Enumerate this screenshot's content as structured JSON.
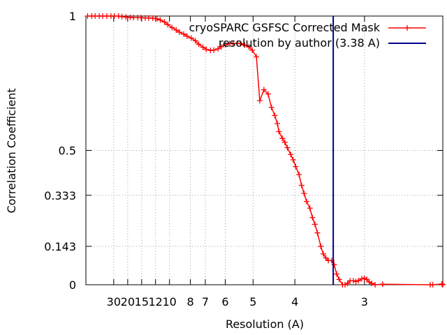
{
  "chart_data": {
    "type": "line",
    "xlabel": "Resolution (A)",
    "ylabel": "Correlation Coefficient",
    "x_unit": "inverse resolution (1/A)",
    "xlim": [
      0,
      0.427
    ],
    "ylim": [
      0,
      1
    ],
    "x_ticks": [
      {
        "label": "30",
        "value": 0.0333
      },
      {
        "label": "20",
        "value": 0.05
      },
      {
        "label": "15",
        "value": 0.0667
      },
      {
        "label": "12",
        "value": 0.0833
      },
      {
        "label": "10",
        "value": 0.1
      },
      {
        "label": "8",
        "value": 0.125
      },
      {
        "label": "7",
        "value": 0.1429
      },
      {
        "label": "6",
        "value": 0.1667
      },
      {
        "label": "5",
        "value": 0.2
      },
      {
        "label": "4",
        "value": 0.25
      },
      {
        "label": "3",
        "value": 0.3333
      }
    ],
    "y_ticks": [
      {
        "label": "0",
        "value": 0
      },
      {
        "label": "0.143",
        "value": 0.143
      },
      {
        "label": "0.333",
        "value": 0.333
      },
      {
        "label": "0.5",
        "value": 0.5
      },
      {
        "label": "1",
        "value": 1
      }
    ],
    "grid": true,
    "legend_position": "top-right",
    "series": [
      {
        "name": "cryoSPARC GSFSC Corrected Mask",
        "color": "#ff0000",
        "marker": "plus",
        "x": [
          0.002,
          0.007,
          0.011,
          0.016,
          0.02,
          0.025,
          0.03,
          0.034,
          0.039,
          0.043,
          0.048,
          0.053,
          0.057,
          0.062,
          0.066,
          0.071,
          0.075,
          0.08,
          0.085,
          0.089,
          0.094,
          0.098,
          0.103,
          0.108,
          0.112,
          0.117,
          0.121,
          0.126,
          0.131,
          0.135,
          0.14,
          0.144,
          0.149,
          0.153,
          0.158,
          0.162,
          0.167,
          0.172,
          0.176,
          0.181,
          0.185,
          0.19,
          0.195,
          0.199,
          0.204,
          0.208,
          0.213,
          0.218,
          0.222,
          0.226,
          0.229,
          0.231,
          0.235,
          0.238,
          0.241,
          0.245,
          0.248,
          0.251,
          0.255,
          0.258,
          0.261,
          0.264,
          0.268,
          0.271,
          0.274,
          0.277,
          0.281,
          0.284,
          0.287,
          0.29,
          0.294,
          0.297,
          0.3,
          0.303,
          0.307,
          0.31,
          0.313,
          0.316,
          0.32,
          0.323,
          0.326,
          0.33,
          0.333,
          0.336,
          0.339,
          0.342,
          0.346,
          0.355,
          0.412,
          0.415,
          0.426,
          0.427
        ],
        "y": [
          1.0,
          1.0,
          1.0,
          1.0,
          1.0,
          1.0,
          1.0,
          1.0,
          1.0,
          0.998,
          0.996,
          0.995,
          0.994,
          0.994,
          0.994,
          0.993,
          0.993,
          0.992,
          0.99,
          0.985,
          0.978,
          0.968,
          0.957,
          0.948,
          0.94,
          0.933,
          0.925,
          0.918,
          0.908,
          0.895,
          0.884,
          0.876,
          0.872,
          0.873,
          0.878,
          0.886,
          0.893,
          0.897,
          0.898,
          0.899,
          0.897,
          0.892,
          0.885,
          0.873,
          0.848,
          0.685,
          0.726,
          0.71,
          0.66,
          0.63,
          0.6,
          0.57,
          0.545,
          0.53,
          0.51,
          0.485,
          0.465,
          0.44,
          0.41,
          0.37,
          0.34,
          0.31,
          0.285,
          0.25,
          0.225,
          0.193,
          0.143,
          0.115,
          0.1,
          0.09,
          0.09,
          0.075,
          0.04,
          0.02,
          0.0,
          -0.01,
          0.005,
          0.015,
          0.015,
          0.012,
          0.015,
          0.022,
          0.025,
          0.02,
          0.01,
          0.005,
          0.0,
          0.002,
          0.0,
          0.0,
          0.003,
          0.0
        ]
      },
      {
        "name": "resolution by author (3.38 A)",
        "color": "#00008b",
        "marker": "none",
        "vertical_line_x": 0.2959
      }
    ]
  }
}
